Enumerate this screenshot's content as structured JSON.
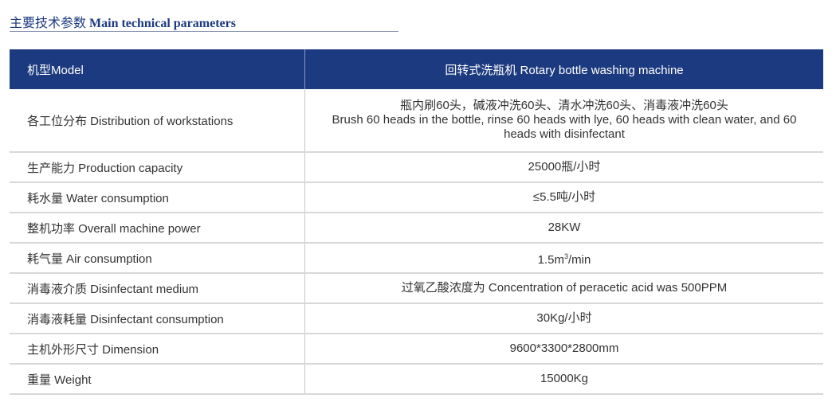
{
  "title": {
    "zh": "主要技术参数",
    "en": "Main technical parameters"
  },
  "header": {
    "label": "机型Model",
    "value": "回转式洗瓶机 Rotary bottle washing machine"
  },
  "rows": [
    {
      "label": "各工位分布 Distribution of workstations",
      "value_zh": "瓶内刷60头，碱液冲洗60头、清水冲洗60头、消毒液冲洗60头",
      "value": "Brush 60 heads in the bottle, rinse 60 heads with lye, 60 heads with clean water, and 60 heads with disinfectant"
    },
    {
      "label": "生产能力 Production capacity",
      "value": "25000瓶/小时"
    },
    {
      "label": "耗水量 Water consumption",
      "value": "≤5.5吨/小时"
    },
    {
      "label": "整机功率 Overall machine power",
      "value": "28KW"
    },
    {
      "label": "耗气量 Air consumption",
      "value": "1.5m",
      "sup": "3",
      "suffix": "/min"
    },
    {
      "label": "消毒液介质 Disinfectant medium",
      "value": "过氧乙酸浓度为 Concentration of peracetic acid was 500PPM"
    },
    {
      "label": "消毒液耗量 Disinfectant consumption",
      "value": "30Kg/小时"
    },
    {
      "label": "主机外形尺寸 Dimension",
      "value": "9600*3300*2800mm"
    },
    {
      "label": "重量 Weight",
      "value": "15000Kg"
    }
  ]
}
